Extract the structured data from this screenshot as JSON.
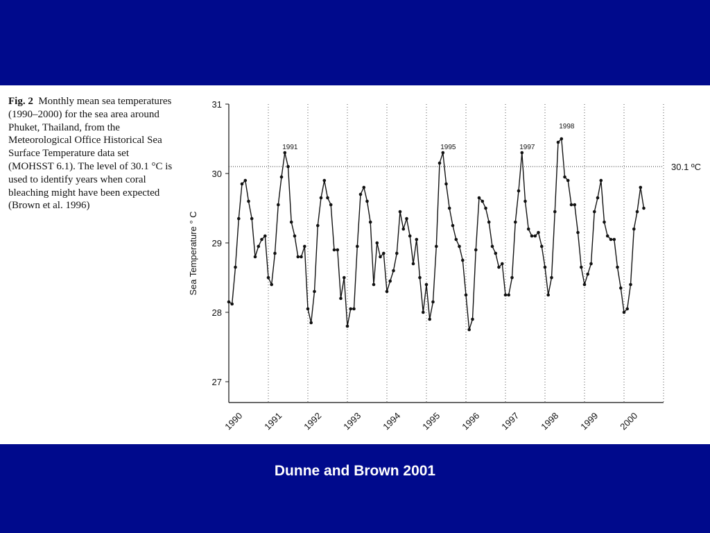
{
  "slide": {
    "attribution": "Dunne and Brown 2001",
    "colors": {
      "background": "#000a8c",
      "panel": "#ffffff",
      "ink": "#111111"
    }
  },
  "caption": {
    "label": "Fig. 2",
    "text": "Monthly mean sea temperatures (1990–2000) for the sea area around Phuket, Thailand, from the Meteorological Office Historical Sea Surface Temperature data set (MOHSST 6.1). The level of 30.1 °C is used to identify years when coral bleaching might have been expected (Brown et al. 1996)"
  },
  "chart_data": {
    "type": "line",
    "title": "",
    "xlabel": "",
    "ylabel": "Sea Temperature  ° C",
    "ylim": [
      26.7,
      31
    ],
    "yticks": [
      27,
      28,
      29,
      30,
      31
    ],
    "xlim": [
      1990,
      2000.85
    ],
    "year_labels": [
      "1990",
      "1991",
      "1992",
      "1993",
      "1994",
      "1995",
      "1996",
      "1997",
      "1998",
      "1999",
      "2000"
    ],
    "grid": "vertical dotted at year boundaries",
    "threshold": {
      "value": 30.1,
      "label": "30.1 ºC"
    },
    "annotations": [
      {
        "text": "1991",
        "x": 1991.55,
        "y": 30.35
      },
      {
        "text": "1995",
        "x": 1995.55,
        "y": 30.35
      },
      {
        "text": "1997",
        "x": 1997.55,
        "y": 30.35
      },
      {
        "text": "1998",
        "x": 1998.55,
        "y": 30.65
      }
    ],
    "series": [
      {
        "start": "1990-01",
        "frequency": "monthly",
        "values": [
          28.15,
          28.12,
          28.65,
          29.35,
          29.85,
          29.9,
          29.6,
          29.35,
          28.8,
          28.95,
          29.05,
          29.1,
          28.5,
          28.4,
          28.85,
          29.55,
          29.95,
          30.3,
          30.1,
          29.3,
          29.1,
          28.8,
          28.8,
          28.95,
          28.05,
          27.85,
          28.3,
          29.25,
          29.65,
          29.9,
          29.65,
          29.55,
          28.9,
          28.9,
          28.2,
          28.5,
          27.8,
          28.05,
          28.05,
          28.95,
          29.7,
          29.8,
          29.6,
          29.3,
          28.4,
          29.0,
          28.8,
          28.85,
          28.3,
          28.45,
          28.6,
          28.85,
          29.45,
          29.2,
          29.35,
          29.1,
          28.7,
          29.05,
          28.5,
          28.0,
          28.4,
          27.9,
          28.15,
          28.95,
          30.15,
          30.3,
          29.85,
          29.5,
          29.25,
          29.05,
          28.95,
          28.75,
          28.25,
          27.75,
          27.9,
          28.9,
          29.65,
          29.6,
          29.5,
          29.3,
          28.95,
          28.85,
          28.65,
          28.7,
          28.25,
          28.25,
          28.5,
          29.3,
          29.75,
          30.3,
          29.6,
          29.2,
          29.1,
          29.1,
          29.15,
          28.95,
          28.65,
          28.25,
          28.5,
          29.45,
          30.45,
          30.5,
          29.95,
          29.9,
          29.55,
          29.55,
          29.15,
          28.65,
          28.4,
          28.55,
          28.7,
          29.45,
          29.65,
          29.9,
          29.3,
          29.1,
          29.05,
          29.05,
          28.65,
          28.35,
          28.0,
          28.05,
          28.4,
          29.2,
          29.45,
          29.8,
          29.5
        ]
      }
    ]
  }
}
